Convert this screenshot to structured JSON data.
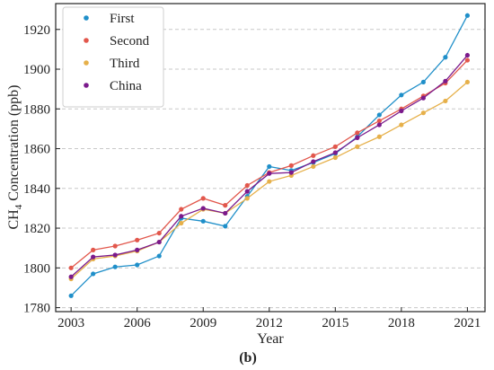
{
  "chart_data": {
    "type": "line",
    "xlabel": "Year",
    "ylabel_main": "CH",
    "ylabel_sub": "4",
    "ylabel_rest": " Concentration (ppb)",
    "caption": "(b)",
    "xlim": [
      2002.3,
      2021.8
    ],
    "ylim": [
      1778,
      1933
    ],
    "x_ticks": [
      2003,
      2006,
      2009,
      2012,
      2015,
      2018,
      2021
    ],
    "y_ticks": [
      1780,
      1800,
      1820,
      1840,
      1860,
      1880,
      1900,
      1920
    ],
    "grid": "horizontal-dashed",
    "legend_position": "top-left",
    "x": [
      2003,
      2004,
      2005,
      2006,
      2007,
      2008,
      2009,
      2010,
      2011,
      2012,
      2013,
      2014,
      2015,
      2016,
      2017,
      2018,
      2019,
      2020,
      2021
    ],
    "series": [
      {
        "name": "First",
        "color": "#1f8fc9",
        "values": [
          1786,
          1797,
          1800.5,
          1801.5,
          1806,
          1825,
          1823.5,
          1821,
          1836,
          1851,
          1849,
          1853,
          1857.5,
          1866,
          1877,
          1887,
          1893.5,
          1906,
          1927
        ]
      },
      {
        "name": "Second",
        "color": "#e2574c",
        "values": [
          1800,
          1809,
          1811,
          1814,
          1817.5,
          1829.5,
          1835,
          1831.5,
          1841.5,
          1848,
          1851.5,
          1856.5,
          1861,
          1868,
          1874,
          1880,
          1886.5,
          1893,
          1904.5
        ]
      },
      {
        "name": "Third",
        "color": "#e6b04a",
        "values": [
          1794.5,
          1804.5,
          1806,
          1808.5,
          1813,
          1822.5,
          1829.5,
          1827.5,
          1835,
          1843.5,
          1846.5,
          1851,
          1855.5,
          1861,
          1866,
          1872,
          1878,
          1884,
          1893.5
        ]
      },
      {
        "name": "China",
        "color": "#7b1a8c",
        "values": [
          1795.5,
          1805.5,
          1806.5,
          1809,
          1813,
          1826,
          1830,
          1827.5,
          1838.5,
          1847.5,
          1848,
          1853.5,
          1858,
          1865.5,
          1872,
          1879,
          1885.5,
          1894,
          1907
        ]
      }
    ]
  }
}
